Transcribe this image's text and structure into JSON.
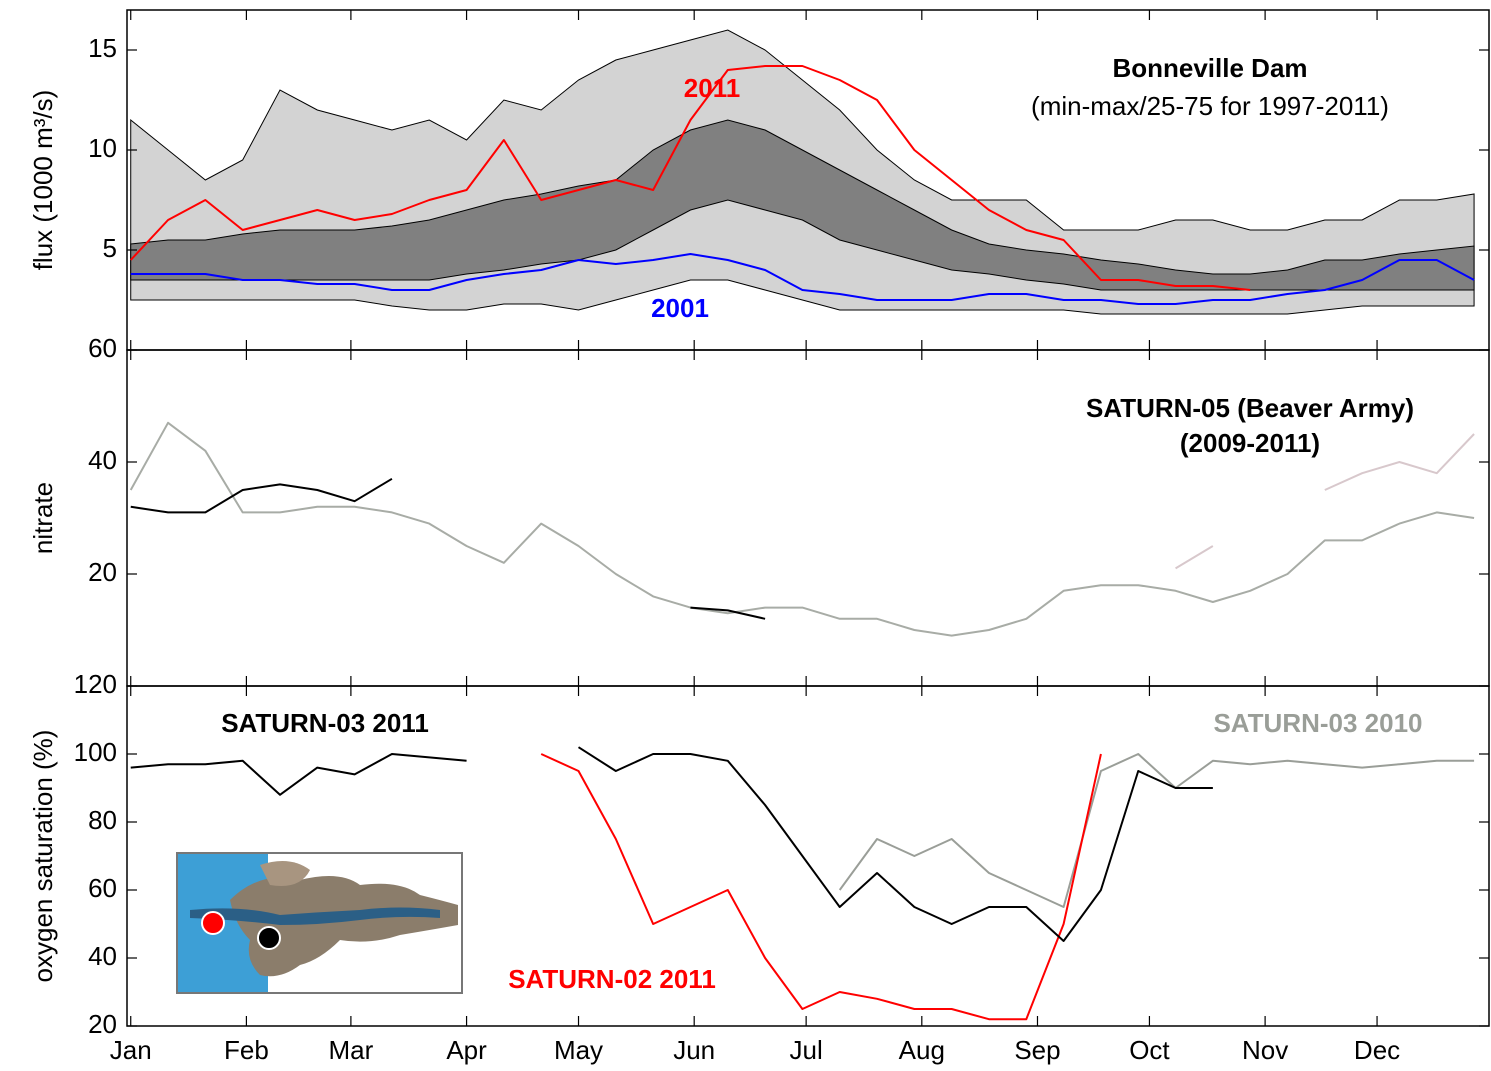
{
  "chart_data": [
    {
      "type": "line",
      "title": "Bonneville Dam",
      "subtitle": "(min-max/25-75 for 1997-2011)",
      "ylabel": "flux (1000 m³/s)",
      "x": [
        1,
        11,
        21,
        31,
        41,
        51,
        61,
        71,
        81,
        91,
        101,
        111,
        121,
        131,
        141,
        151,
        161,
        171,
        181,
        191,
        201,
        211,
        221,
        231,
        241,
        251,
        261,
        271,
        281,
        291,
        301,
        311,
        321,
        331,
        341,
        351,
        361
      ],
      "xlim": [
        0,
        365
      ],
      "ylim": [
        0,
        17
      ],
      "yticks": [
        5,
        10,
        15
      ],
      "bands": [
        {
          "color": "#d3d3d3",
          "lower": [
            2.5,
            2.5,
            2.5,
            2.5,
            2.5,
            2.5,
            2.5,
            2.2,
            2.0,
            2.0,
            2.3,
            2.3,
            2.0,
            2.5,
            3.0,
            3.5,
            3.5,
            3.0,
            2.5,
            2.0,
            2.0,
            2.0,
            2.0,
            2.0,
            2.0,
            2.0,
            1.8,
            1.8,
            1.8,
            1.8,
            1.8,
            1.8,
            2.0,
            2.2,
            2.2,
            2.2,
            2.2
          ],
          "upper": [
            11.5,
            10,
            8.5,
            9.5,
            13,
            12,
            11.5,
            11,
            11.5,
            10.5,
            12.5,
            12,
            13.5,
            14.5,
            15,
            15.5,
            16,
            15,
            13.5,
            12,
            10,
            8.5,
            7.5,
            7.5,
            7.5,
            6,
            6,
            6,
            6.5,
            6.5,
            6,
            6,
            6.5,
            6.5,
            7.5,
            7.5,
            7.8
          ]
        },
        {
          "color": "#808080",
          "lower": [
            3.5,
            3.5,
            3.5,
            3.5,
            3.5,
            3.5,
            3.5,
            3.5,
            3.5,
            3.8,
            4.0,
            4.3,
            4.5,
            5.0,
            6.0,
            7.0,
            7.5,
            7.0,
            6.5,
            5.5,
            5.0,
            4.5,
            4.0,
            3.8,
            3.5,
            3.3,
            3.0,
            3.0,
            3.0,
            3.0,
            3.0,
            3.0,
            3.0,
            3.0,
            3.0,
            3.0,
            3.0
          ],
          "upper": [
            5.3,
            5.5,
            5.5,
            5.8,
            6.0,
            6.0,
            6.0,
            6.2,
            6.5,
            7.0,
            7.5,
            7.8,
            8.2,
            8.5,
            10.0,
            11.0,
            11.5,
            11.0,
            10.0,
            9.0,
            8.0,
            7.0,
            6.0,
            5.3,
            5.0,
            4.8,
            4.5,
            4.3,
            4.0,
            3.8,
            3.8,
            4.0,
            4.5,
            4.5,
            4.8,
            5.0,
            5.2
          ]
        }
      ],
      "series": [
        {
          "name": "2011",
          "color": "#ff0000",
          "values": [
            4.5,
            6.5,
            7.5,
            6.0,
            6.5,
            7.0,
            6.5,
            6.8,
            7.5,
            8.0,
            10.5,
            7.5,
            8.0,
            8.5,
            8.0,
            11.5,
            14.0,
            14.2,
            14.2,
            13.5,
            12.5,
            10.0,
            8.5,
            7.0,
            6.0,
            5.5,
            3.5,
            3.5,
            3.2,
            3.2,
            3.0,
            null,
            null,
            null,
            null,
            null,
            null
          ]
        },
        {
          "name": "2001",
          "color": "#0000ff",
          "values": [
            3.8,
            3.8,
            3.8,
            3.5,
            3.5,
            3.3,
            3.3,
            3.0,
            3.0,
            3.5,
            3.8,
            4.0,
            4.5,
            4.3,
            4.5,
            4.8,
            4.5,
            4.0,
            3.0,
            2.8,
            2.5,
            2.5,
            2.5,
            2.8,
            2.8,
            2.5,
            2.5,
            2.3,
            2.3,
            2.5,
            2.5,
            2.8,
            3.0,
            3.5,
            4.5,
            4.5,
            3.5
          ]
        }
      ]
    },
    {
      "type": "line",
      "title": "SATURN-05 (Beaver Army)",
      "subtitle": "(2009-2011)",
      "ylabel": "nitrate",
      "x": [
        1,
        11,
        21,
        31,
        41,
        51,
        61,
        71,
        81,
        91,
        101,
        111,
        121,
        131,
        141,
        151,
        161,
        171,
        181,
        191,
        201,
        211,
        221,
        231,
        241,
        251,
        261,
        271,
        281,
        291,
        301,
        311,
        321,
        331,
        341,
        351,
        361
      ],
      "xlim": [
        0,
        365
      ],
      "ylim": [
        0,
        60
      ],
      "yticks": [
        20,
        40,
        60
      ],
      "series": [
        {
          "color": "#a8aca6",
          "values": [
            35,
            47,
            42,
            31,
            31,
            32,
            32,
            31,
            29,
            25,
            22,
            29,
            25,
            20,
            16,
            14,
            13,
            14,
            14,
            12,
            12,
            10,
            9,
            10,
            12,
            17,
            18,
            18,
            17,
            15,
            17,
            20,
            26,
            26,
            29,
            31,
            30
          ]
        },
        {
          "color": "#d8c8cc",
          "values": [
            null,
            null,
            null,
            null,
            null,
            null,
            null,
            null,
            null,
            null,
            null,
            null,
            null,
            null,
            null,
            null,
            null,
            null,
            null,
            null,
            null,
            null,
            null,
            null,
            null,
            null,
            null,
            null,
            21,
            25,
            null,
            null,
            35,
            38,
            40,
            38,
            45
          ]
        },
        {
          "color": "#000000",
          "values": [
            32,
            31,
            31,
            35,
            36,
            35,
            33,
            37,
            null,
            null,
            null,
            null,
            null,
            null,
            null,
            14,
            13.5,
            12,
            null,
            null,
            null,
            null,
            null,
            null,
            null,
            null,
            null,
            null,
            null,
            null,
            null,
            null,
            null,
            null,
            null,
            null,
            null
          ]
        }
      ]
    },
    {
      "type": "line",
      "ylabel": "oxygen saturation (%)",
      "x": [
        1,
        11,
        21,
        31,
        41,
        51,
        61,
        71,
        81,
        91,
        101,
        111,
        121,
        131,
        141,
        151,
        161,
        171,
        181,
        191,
        201,
        211,
        221,
        231,
        241,
        251,
        261,
        271,
        281,
        291,
        301,
        311,
        321,
        331,
        341,
        351,
        361
      ],
      "xlim": [
        0,
        365
      ],
      "ylim": [
        20,
        120
      ],
      "yticks": [
        20,
        40,
        60,
        80,
        100,
        120
      ],
      "xticks": [
        {
          "value": 1,
          "label": "Jan"
        },
        {
          "value": 32,
          "label": "Feb"
        },
        {
          "value": 60,
          "label": "Mar"
        },
        {
          "value": 91,
          "label": "Apr"
        },
        {
          "value": 121,
          "label": "May"
        },
        {
          "value": 152,
          "label": "Jun"
        },
        {
          "value": 182,
          "label": "Jul"
        },
        {
          "value": 213,
          "label": "Aug"
        },
        {
          "value": 244,
          "label": "Sep"
        },
        {
          "value": 274,
          "label": "Oct"
        },
        {
          "value": 305,
          "label": "Nov"
        },
        {
          "value": 335,
          "label": "Dec"
        }
      ],
      "series": [
        {
          "name": "SATURN-03 2010",
          "color": "#9a9e98",
          "values": [
            null,
            null,
            null,
            null,
            null,
            null,
            null,
            null,
            null,
            null,
            null,
            null,
            null,
            null,
            null,
            null,
            null,
            null,
            null,
            60,
            75,
            70,
            75,
            65,
            60,
            55,
            95,
            100,
            90,
            98,
            97,
            98,
            97,
            96,
            97,
            98,
            98
          ]
        },
        {
          "name": "SATURN-02 2011",
          "color": "#ff0000",
          "values": [
            null,
            null,
            null,
            null,
            null,
            null,
            null,
            null,
            null,
            null,
            null,
            100,
            95,
            75,
            50,
            55,
            60,
            40,
            25,
            30,
            28,
            25,
            25,
            22,
            22,
            50,
            100,
            null,
            null,
            null,
            null,
            null,
            null,
            null,
            null,
            null,
            null
          ]
        },
        {
          "name": "SATURN-03 2011",
          "color": "#000000",
          "values": [
            96,
            97,
            97,
            98,
            88,
            96,
            94,
            100,
            99,
            98,
            null,
            null,
            102,
            95,
            100,
            100,
            98,
            85,
            70,
            55,
            65,
            55,
            50,
            55,
            55,
            45,
            60,
            95,
            90,
            90,
            null,
            null,
            null,
            null,
            null,
            null,
            null
          ]
        }
      ]
    }
  ]
}
